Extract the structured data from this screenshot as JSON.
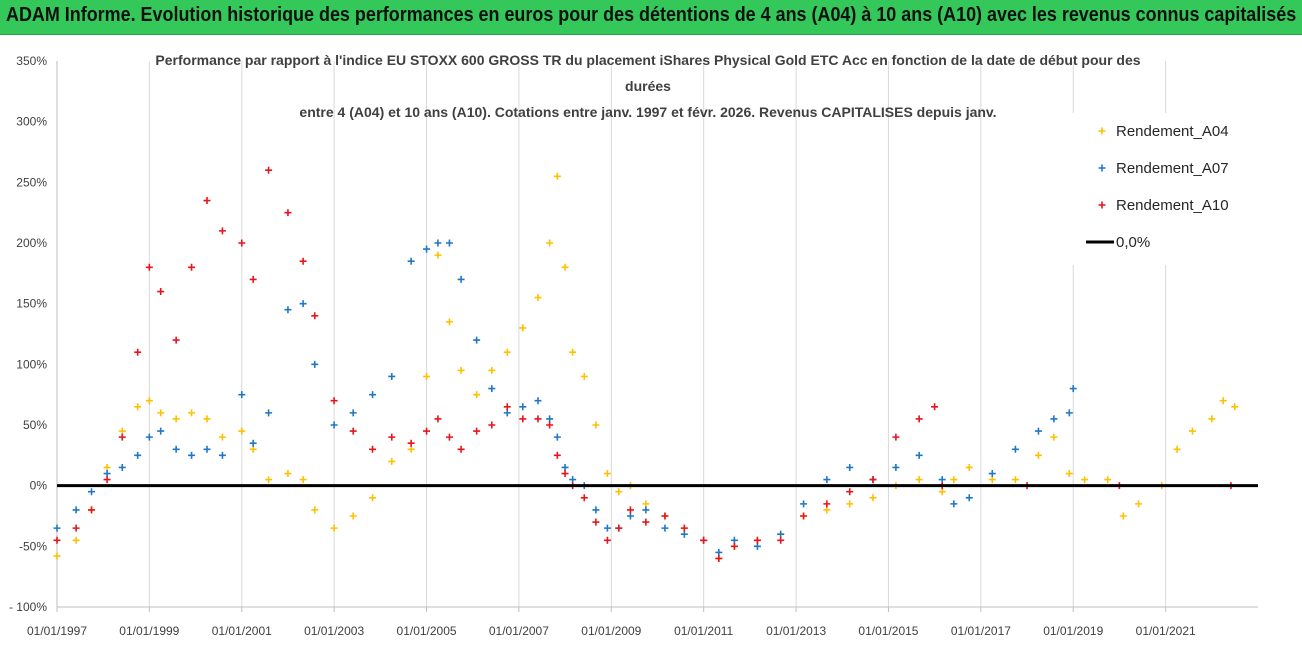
{
  "banner": {
    "text": "ADAM Informe. Evolution historique des performances en euros pour des détentions de 4 ans (A04) à 10 ans (A10) avec les revenus connus capitalisés"
  },
  "chart_data": {
    "type": "scatter",
    "title_lines": [
      "Performance par rapport à l'indice EU STOXX 600 GROSS TR  du placement iShares Physical Gold ETC Acc en fonction de la date de début pour des",
      "durées",
      "entre 4 (A04) et 10 ans (A10). Cotations entre janv. 1997 et févr. 2026. Revenus CAPITALISES depuis janv."
    ],
    "x_tick_labels": [
      "01/01/1997",
      "01/01/1999",
      "01/01/2001",
      "01/01/2003",
      "01/01/2005",
      "01/01/2007",
      "01/01/2009",
      "01/01/2011",
      "01/01/2013",
      "01/01/2015",
      "01/01/2017",
      "01/01/2019",
      "01/01/2021"
    ],
    "y_tick_labels": [
      "- 100%",
      "-50%",
      "0%",
      "50%",
      "100%",
      "150%",
      "200%",
      "250%",
      "300%",
      "350%"
    ],
    "xlim": [
      "1997-01-01",
      "2023-01-01"
    ],
    "ylim": [
      -100,
      350
    ],
    "y_unit": "%",
    "grid": {
      "x": true,
      "y": false
    },
    "legend_position": "top-right",
    "baseline": {
      "name": "0,0%",
      "value": 0,
      "color": "#000000"
    },
    "series": [
      {
        "name": "Rendement_A04",
        "color": "#ffc000",
        "marker": "plus",
        "points": [
          [
            "1997-01-01",
            -58
          ],
          [
            "1997-06-01",
            -45
          ],
          [
            "1997-10-01",
            -20
          ],
          [
            "1998-02-01",
            15
          ],
          [
            "1998-06-01",
            45
          ],
          [
            "1998-10-01",
            65
          ],
          [
            "1999-01-01",
            70
          ],
          [
            "1999-04-01",
            60
          ],
          [
            "1999-08-01",
            55
          ],
          [
            "1999-12-01",
            60
          ],
          [
            "2000-04-01",
            55
          ],
          [
            "2000-08-01",
            40
          ],
          [
            "2001-01-01",
            45
          ],
          [
            "2001-04-01",
            30
          ],
          [
            "2001-08-01",
            5
          ],
          [
            "2002-01-01",
            10
          ],
          [
            "2002-05-01",
            5
          ],
          [
            "2002-08-01",
            -20
          ],
          [
            "2003-01-01",
            -35
          ],
          [
            "2003-06-01",
            -25
          ],
          [
            "2003-11-01",
            -10
          ],
          [
            "2004-04-01",
            20
          ],
          [
            "2004-09-01",
            30
          ],
          [
            "2005-01-01",
            90
          ],
          [
            "2005-04-01",
            190
          ],
          [
            "2005-07-01",
            135
          ],
          [
            "2005-10-01",
            95
          ],
          [
            "2006-02-01",
            75
          ],
          [
            "2006-06-01",
            95
          ],
          [
            "2006-10-01",
            110
          ],
          [
            "2007-02-01",
            130
          ],
          [
            "2007-06-01",
            155
          ],
          [
            "2007-09-01",
            200
          ],
          [
            "2007-11-01",
            255
          ],
          [
            "2008-01-01",
            180
          ],
          [
            "2008-03-01",
            110
          ],
          [
            "2008-06-01",
            90
          ],
          [
            "2008-09-01",
            50
          ],
          [
            "2008-12-01",
            10
          ],
          [
            "2009-03-01",
            -5
          ],
          [
            "2009-06-01",
            0
          ],
          [
            "2009-10-01",
            -15
          ],
          [
            "2010-03-01",
            -25
          ],
          [
            "2010-08-01",
            -35
          ],
          [
            "2011-01-01",
            -45
          ],
          [
            "2011-05-01",
            -60
          ],
          [
            "2011-09-01",
            -50
          ],
          [
            "2012-03-01",
            -45
          ],
          [
            "2012-09-01",
            -40
          ],
          [
            "2013-03-01",
            -25
          ],
          [
            "2013-09-01",
            -20
          ],
          [
            "2014-03-01",
            -15
          ],
          [
            "2014-09-01",
            -10
          ],
          [
            "2015-03-01",
            0
          ],
          [
            "2015-09-01",
            5
          ],
          [
            "2016-03-01",
            -5
          ],
          [
            "2016-06-01",
            5
          ],
          [
            "2016-10-01",
            15
          ],
          [
            "2017-04-01",
            5
          ],
          [
            "2017-10-01",
            5
          ],
          [
            "2018-04-01",
            25
          ],
          [
            "2018-08-01",
            40
          ],
          [
            "2018-12-01",
            10
          ],
          [
            "2019-04-01",
            5
          ],
          [
            "2019-10-01",
            5
          ],
          [
            "2020-02-01",
            -25
          ],
          [
            "2020-06-01",
            -15
          ],
          [
            "2020-12-01",
            0
          ],
          [
            "2021-04-01",
            30
          ],
          [
            "2021-08-01",
            45
          ],
          [
            "2022-01-01",
            55
          ],
          [
            "2022-04-01",
            70
          ],
          [
            "2022-07-01",
            65
          ]
        ]
      },
      {
        "name": "Rendement_A07",
        "color": "#1f77c8",
        "marker": "plus",
        "points": [
          [
            "1997-01-01",
            -35
          ],
          [
            "1997-06-01",
            -20
          ],
          [
            "1997-10-01",
            -5
          ],
          [
            "1998-02-01",
            10
          ],
          [
            "1998-06-01",
            15
          ],
          [
            "1998-10-01",
            25
          ],
          [
            "1999-01-01",
            40
          ],
          [
            "1999-04-01",
            45
          ],
          [
            "1999-08-01",
            30
          ],
          [
            "1999-12-01",
            25
          ],
          [
            "2000-04-01",
            30
          ],
          [
            "2000-08-01",
            25
          ],
          [
            "2001-01-01",
            75
          ],
          [
            "2001-04-01",
            35
          ],
          [
            "2001-08-01",
            60
          ],
          [
            "2002-01-01",
            145
          ],
          [
            "2002-05-01",
            150
          ],
          [
            "2002-08-01",
            100
          ],
          [
            "2003-01-01",
            50
          ],
          [
            "2003-06-01",
            60
          ],
          [
            "2003-11-01",
            75
          ],
          [
            "2004-04-01",
            90
          ],
          [
            "2004-09-01",
            185
          ],
          [
            "2005-01-01",
            195
          ],
          [
            "2005-04-01",
            200
          ],
          [
            "2005-07-01",
            200
          ],
          [
            "2005-10-01",
            170
          ],
          [
            "2006-02-01",
            120
          ],
          [
            "2006-06-01",
            80
          ],
          [
            "2006-10-01",
            60
          ],
          [
            "2007-02-01",
            65
          ],
          [
            "2007-06-01",
            70
          ],
          [
            "2007-09-01",
            55
          ],
          [
            "2007-11-01",
            40
          ],
          [
            "2008-01-01",
            15
          ],
          [
            "2008-03-01",
            5
          ],
          [
            "2008-06-01",
            0
          ],
          [
            "2008-09-01",
            -20
          ],
          [
            "2008-12-01",
            -35
          ],
          [
            "2009-03-01",
            -35
          ],
          [
            "2009-06-01",
            -25
          ],
          [
            "2009-10-01",
            -20
          ],
          [
            "2010-03-01",
            -35
          ],
          [
            "2010-08-01",
            -40
          ],
          [
            "2011-01-01",
            -45
          ],
          [
            "2011-05-01",
            -55
          ],
          [
            "2011-09-01",
            -45
          ],
          [
            "2012-03-01",
            -50
          ],
          [
            "2012-09-01",
            -40
          ],
          [
            "2013-03-01",
            -15
          ],
          [
            "2013-09-01",
            5
          ],
          [
            "2014-03-01",
            15
          ],
          [
            "2014-09-01",
            5
          ],
          [
            "2015-03-01",
            15
          ],
          [
            "2015-09-01",
            25
          ],
          [
            "2016-03-01",
            5
          ],
          [
            "2016-06-01",
            -15
          ],
          [
            "2016-10-01",
            -10
          ],
          [
            "2017-04-01",
            10
          ],
          [
            "2017-10-01",
            30
          ],
          [
            "2018-04-01",
            45
          ],
          [
            "2018-08-01",
            55
          ],
          [
            "2018-12-01",
            60
          ],
          [
            "2019-01-01",
            80
          ]
        ]
      },
      {
        "name": "Rendement_A10",
        "color": "#e8141c",
        "marker": "plus",
        "points": [
          [
            "1997-01-01",
            -45
          ],
          [
            "1997-06-01",
            -35
          ],
          [
            "1997-10-01",
            -20
          ],
          [
            "1998-02-01",
            5
          ],
          [
            "1998-06-01",
            40
          ],
          [
            "1998-10-01",
            110
          ],
          [
            "1999-01-01",
            180
          ],
          [
            "1999-04-01",
            160
          ],
          [
            "1999-08-01",
            120
          ],
          [
            "1999-12-01",
            180
          ],
          [
            "2000-04-01",
            235
          ],
          [
            "2000-08-01",
            210
          ],
          [
            "2001-01-01",
            200
          ],
          [
            "2001-04-01",
            170
          ],
          [
            "2001-08-01",
            260
          ],
          [
            "2002-01-01",
            225
          ],
          [
            "2002-05-01",
            185
          ],
          [
            "2002-08-01",
            140
          ],
          [
            "2003-01-01",
            70
          ],
          [
            "2003-06-01",
            45
          ],
          [
            "2003-11-01",
            30
          ],
          [
            "2004-04-01",
            40
          ],
          [
            "2004-09-01",
            35
          ],
          [
            "2005-01-01",
            45
          ],
          [
            "2005-04-01",
            55
          ],
          [
            "2005-07-01",
            40
          ],
          [
            "2005-10-01",
            30
          ],
          [
            "2006-02-01",
            45
          ],
          [
            "2006-06-01",
            50
          ],
          [
            "2006-10-01",
            65
          ],
          [
            "2007-02-01",
            55
          ],
          [
            "2007-06-01",
            55
          ],
          [
            "2007-09-01",
            50
          ],
          [
            "2007-11-01",
            25
          ],
          [
            "2008-01-01",
            10
          ],
          [
            "2008-03-01",
            0
          ],
          [
            "2008-06-01",
            -10
          ],
          [
            "2008-09-01",
            -30
          ],
          [
            "2008-12-01",
            -45
          ],
          [
            "2009-03-01",
            -35
          ],
          [
            "2009-06-01",
            -20
          ],
          [
            "2009-10-01",
            -30
          ],
          [
            "2010-03-01",
            -25
          ],
          [
            "2010-08-01",
            -35
          ],
          [
            "2011-01-01",
            -45
          ],
          [
            "2011-05-01",
            -60
          ],
          [
            "2011-09-01",
            -50
          ],
          [
            "2012-03-01",
            -45
          ],
          [
            "2012-09-01",
            -45
          ],
          [
            "2013-03-01",
            -25
          ],
          [
            "2013-09-01",
            -15
          ],
          [
            "2014-03-01",
            -5
          ],
          [
            "2014-09-01",
            5
          ],
          [
            "2015-03-01",
            40
          ],
          [
            "2015-09-01",
            55
          ],
          [
            "2016-01-01",
            65
          ],
          [
            "2016-03-01",
            0
          ],
          [
            "2018-01-01",
            0
          ],
          [
            "2020-01-01",
            0
          ],
          [
            "2022-06-01",
            0
          ]
        ]
      }
    ]
  }
}
